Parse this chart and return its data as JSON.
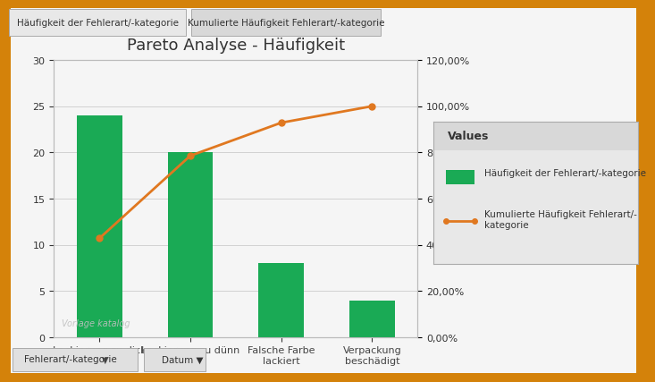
{
  "title": "Pareto Analyse - Häufigkeit",
  "categories": [
    "Lackierung zu dick",
    "Lackierung zu dünn",
    "Falsche Farbe\nlackiert",
    "Verpackung\nbeschädigt"
  ],
  "bar_values": [
    24,
    20,
    8,
    4
  ],
  "cumulative_pct": [
    42.86,
    78.57,
    92.86,
    100.0
  ],
  "bar_color": "#1aaa55",
  "line_color": "#e07820",
  "ylim_left": [
    0,
    30
  ],
  "ylim_right": [
    0,
    1.2
  ],
  "yticks_left": [
    0,
    5,
    10,
    15,
    20,
    25,
    30
  ],
  "yticks_right": [
    0.0,
    0.2,
    0.4,
    0.6,
    0.8,
    1.0,
    1.2
  ],
  "ytick_right_labels": [
    "0,00%",
    "20,00%",
    "40,00%",
    "60,00%",
    "80,00%",
    "100,00%",
    "120,00%"
  ],
  "legend_title": "Values",
  "legend_bar_label": "Häufigkeit der Fehlerart/-kategorie",
  "legend_line_label": "Kumulierte Häufigkeit Fehlerart/-\nkategorie",
  "tab_labels": [
    "Häufigkeit der Fehlerart/-kategorie",
    "Kumulierte Häufigkeit Fehlerart/-kategorie"
  ],
  "bottom_buttons": [
    "Fehlerart/-kategorie",
    "Datum"
  ],
  "outer_bg": "#d4820a",
  "inner_bg": "#f5f5f5",
  "legend_bg": "#e8e8e8",
  "tab_bg1": "#e8e8e8",
  "tab_bg2": "#d8d8d8",
  "watermark": "Vorlage katalog",
  "bar_width": 0.5,
  "title_fontsize": 13,
  "tick_fontsize": 8,
  "legend_fontsize": 8,
  "border_thickness": 6
}
